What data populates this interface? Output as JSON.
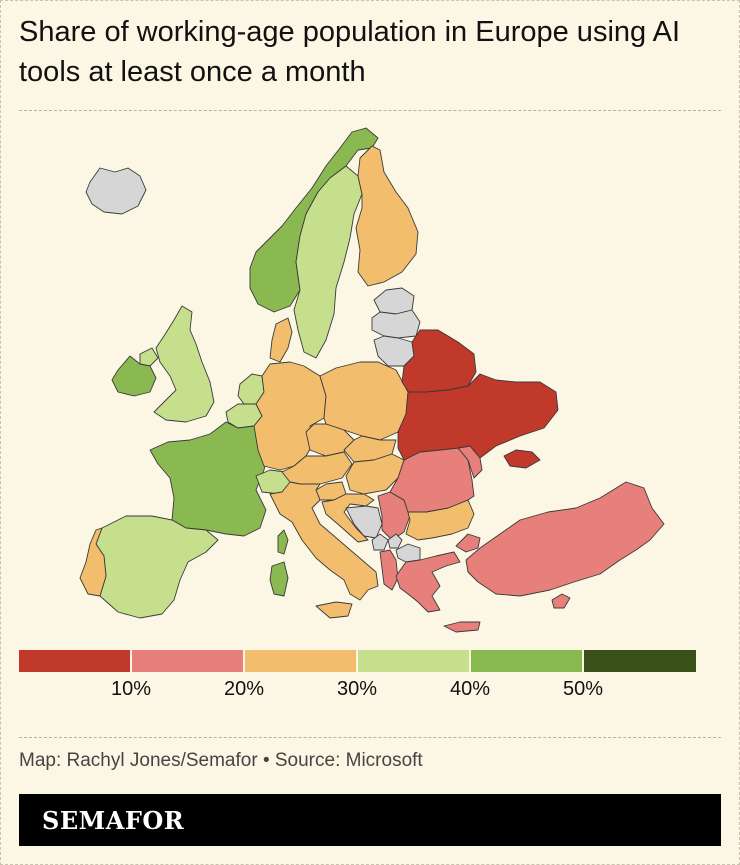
{
  "title": "Share of working-age population in Europe using AI tools at least once a month",
  "legend": {
    "colors": [
      "#c0392b",
      "#e77f7b",
      "#f2bd6c",
      "#c5df8c",
      "#8ab952",
      "#3a5219"
    ],
    "ticks": [
      "10%",
      "20%",
      "30%",
      "40%",
      "50%"
    ]
  },
  "no_data_color": "#d6d6d6",
  "credit": "Map: Rachyl Jones/Semafor • Source: Microsoft",
  "brand": "SEMAFOR",
  "countries": [
    {
      "name": "Iceland",
      "band": "no-data"
    },
    {
      "name": "Norway",
      "band": "40-50"
    },
    {
      "name": "Sweden",
      "band": "30-40"
    },
    {
      "name": "Finland",
      "band": "20-30"
    },
    {
      "name": "Estonia",
      "band": "no-data"
    },
    {
      "name": "Latvia",
      "band": "no-data"
    },
    {
      "name": "Lithuania",
      "band": "no-data"
    },
    {
      "name": "Denmark",
      "band": "20-30"
    },
    {
      "name": "United Kingdom",
      "band": "30-40"
    },
    {
      "name": "Ireland",
      "band": "40-50"
    },
    {
      "name": "Netherlands",
      "band": "30-40"
    },
    {
      "name": "Belgium",
      "band": "30-40"
    },
    {
      "name": "France",
      "band": "40-50"
    },
    {
      "name": "Spain",
      "band": "30-40"
    },
    {
      "name": "Portugal",
      "band": "20-30"
    },
    {
      "name": "Germany",
      "band": "20-30"
    },
    {
      "name": "Poland",
      "band": "20-30"
    },
    {
      "name": "Czechia",
      "band": "20-30"
    },
    {
      "name": "Slovakia",
      "band": "20-30"
    },
    {
      "name": "Austria",
      "band": "20-30"
    },
    {
      "name": "Hungary",
      "band": "20-30"
    },
    {
      "name": "Switzerland",
      "band": "30-40"
    },
    {
      "name": "Italy",
      "band": "20-30"
    },
    {
      "name": "Sardinia",
      "band": "40-50"
    },
    {
      "name": "Slovenia",
      "band": "20-30"
    },
    {
      "name": "Croatia",
      "band": "20-30"
    },
    {
      "name": "Bosnia and Herzegovina",
      "band": "no-data"
    },
    {
      "name": "Serbia",
      "band": "10-20"
    },
    {
      "name": "Montenegro",
      "band": "no-data"
    },
    {
      "name": "Kosovo",
      "band": "no-data"
    },
    {
      "name": "North Macedonia",
      "band": "no-data"
    },
    {
      "name": "Albania",
      "band": "10-20"
    },
    {
      "name": "Greece",
      "band": "10-20"
    },
    {
      "name": "Bulgaria",
      "band": "20-30"
    },
    {
      "name": "Romania",
      "band": "10-20"
    },
    {
      "name": "Moldova",
      "band": "10-20"
    },
    {
      "name": "Belarus",
      "band": "0-10"
    },
    {
      "name": "Ukraine",
      "band": "0-10"
    },
    {
      "name": "Crimea",
      "band": "0-10"
    },
    {
      "name": "Turkey",
      "band": "10-20"
    },
    {
      "name": "Cyprus",
      "band": "10-20"
    },
    {
      "name": "Corsica",
      "band": "40-50"
    }
  ]
}
